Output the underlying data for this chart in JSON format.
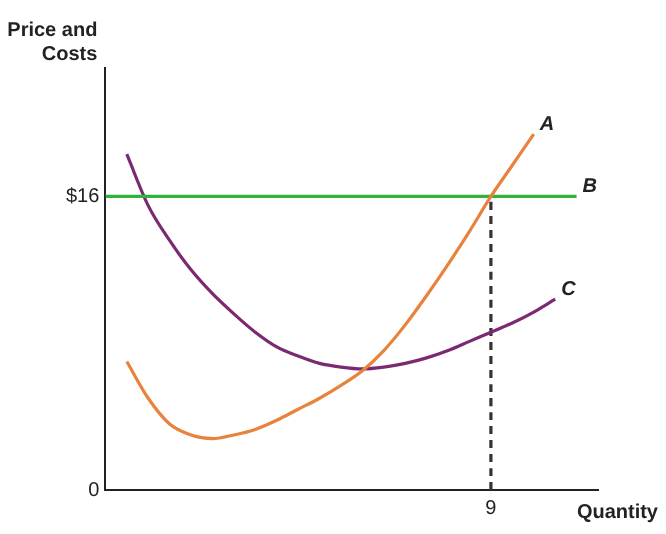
{
  "chart_data": {
    "type": "line",
    "xlabel": "Quantity",
    "ylabel": "Price and Costs",
    "categories": [
      null,
      null,
      null,
      null,
      null,
      null,
      null,
      null,
      null,
      null,
      null,
      null,
      null,
      null,
      null,
      null,
      null,
      null,
      "9",
      null,
      null,
      null,
      null,
      null
    ],
    "ylim": [
      0,
      23
    ],
    "yticks": [
      0,
      {
        "value": 16,
        "label": "$16"
      }
    ],
    "grid": false,
    "legend": false,
    "marker": "none",
    "series": [
      {
        "name": "A",
        "color": "#e8823c",
        "values": [
          null,
          7.0,
          5.0,
          3.6,
          3.0,
          2.8,
          3.0,
          3.3,
          3.8,
          4.4,
          5.0,
          5.7,
          6.5,
          7.6,
          9.0,
          10.6,
          12.3,
          14.1,
          16,
          17.7,
          19.4,
          null,
          null,
          null
        ]
      },
      {
        "name": "B",
        "color": "#2fb33a",
        "values": [
          16,
          16,
          16,
          16,
          16,
          16,
          16,
          16,
          16,
          16,
          16,
          16,
          16,
          16,
          16,
          16,
          16,
          16,
          16,
          16,
          16,
          16,
          16,
          null
        ]
      },
      {
        "name": "C",
        "color": "#7b2a72",
        "values": [
          null,
          18.3,
          15.5,
          13.6,
          12.0,
          10.7,
          9.6,
          8.6,
          7.8,
          7.3,
          6.9,
          6.7,
          6.6,
          6.7,
          6.9,
          7.2,
          7.6,
          8.1,
          8.6,
          9.1,
          9.7,
          10.4,
          null,
          null
        ]
      },
      {
        "color": "#333333",
        "line_style": "dashed",
        "x": [
          "9",
          "9"
        ],
        "values": [
          0,
          16
        ]
      }
    ]
  }
}
